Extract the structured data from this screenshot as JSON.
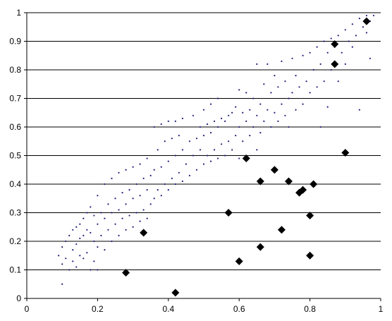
{
  "chart_data": {
    "type": "scatter",
    "title": "",
    "xlabel": "",
    "ylabel": "",
    "xlim": [
      0,
      1
    ],
    "ylim": [
      0,
      1
    ],
    "x_ticks": [
      "0",
      "0.2",
      "0.4",
      "0.6",
      "0.8",
      "1"
    ],
    "y_ticks": [
      "0",
      "0.1",
      "0.2",
      "0.3",
      "0.4",
      "0.5",
      "0.6",
      "0.7",
      "0.8",
      "0.9",
      "1"
    ],
    "horizontal_grid": true,
    "vertical_grid": false,
    "legend": "none",
    "series": [
      {
        "marker": "small-dot",
        "color": "#1f1f7a",
        "points": [
          [
            0.09,
            0.15
          ],
          [
            0.1,
            0.05
          ],
          [
            0.1,
            0.12
          ],
          [
            0.1,
            0.18
          ],
          [
            0.11,
            0.2
          ],
          [
            0.11,
            0.14
          ],
          [
            0.12,
            0.22
          ],
          [
            0.12,
            0.1
          ],
          [
            0.13,
            0.24
          ],
          [
            0.13,
            0.17
          ],
          [
            0.13,
            0.13
          ],
          [
            0.14,
            0.25
          ],
          [
            0.14,
            0.19
          ],
          [
            0.14,
            0.11
          ],
          [
            0.15,
            0.26
          ],
          [
            0.15,
            0.21
          ],
          [
            0.15,
            0.15
          ],
          [
            0.16,
            0.28
          ],
          [
            0.16,
            0.22
          ],
          [
            0.16,
            0.14
          ],
          [
            0.17,
            0.3
          ],
          [
            0.17,
            0.24
          ],
          [
            0.17,
            0.16
          ],
          [
            0.18,
            0.32
          ],
          [
            0.18,
            0.23
          ],
          [
            0.18,
            0.1
          ],
          [
            0.19,
            0.29
          ],
          [
            0.19,
            0.2
          ],
          [
            0.19,
            0.13
          ],
          [
            0.2,
            0.36
          ],
          [
            0.2,
            0.26
          ],
          [
            0.2,
            0.18
          ],
          [
            0.2,
            0.1
          ],
          [
            0.21,
            0.3
          ],
          [
            0.21,
            0.22
          ],
          [
            0.22,
            0.4
          ],
          [
            0.22,
            0.28
          ],
          [
            0.22,
            0.17
          ],
          [
            0.23,
            0.33
          ],
          [
            0.23,
            0.24
          ],
          [
            0.24,
            0.42
          ],
          [
            0.24,
            0.3
          ],
          [
            0.24,
            0.2
          ],
          [
            0.25,
            0.35
          ],
          [
            0.25,
            0.26
          ],
          [
            0.26,
            0.44
          ],
          [
            0.26,
            0.31
          ],
          [
            0.26,
            0.22
          ],
          [
            0.27,
            0.37
          ],
          [
            0.27,
            0.28
          ],
          [
            0.28,
            0.45
          ],
          [
            0.28,
            0.33
          ],
          [
            0.28,
            0.24
          ],
          [
            0.29,
            0.38
          ],
          [
            0.29,
            0.29
          ],
          [
            0.3,
            0.46
          ],
          [
            0.3,
            0.35
          ],
          [
            0.3,
            0.25
          ],
          [
            0.31,
            0.4
          ],
          [
            0.31,
            0.3
          ],
          [
            0.32,
            0.47
          ],
          [
            0.32,
            0.36
          ],
          [
            0.32,
            0.27
          ],
          [
            0.33,
            0.42
          ],
          [
            0.33,
            0.31
          ],
          [
            0.34,
            0.49
          ],
          [
            0.34,
            0.38
          ],
          [
            0.34,
            0.28
          ],
          [
            0.35,
            0.43
          ],
          [
            0.35,
            0.33
          ],
          [
            0.36,
            0.6
          ],
          [
            0.36,
            0.45
          ],
          [
            0.36,
            0.35
          ],
          [
            0.37,
            0.52
          ],
          [
            0.37,
            0.38
          ],
          [
            0.38,
            0.61
          ],
          [
            0.38,
            0.46
          ],
          [
            0.38,
            0.36
          ],
          [
            0.39,
            0.55
          ],
          [
            0.39,
            0.4
          ],
          [
            0.4,
            0.62
          ],
          [
            0.4,
            0.48
          ],
          [
            0.4,
            0.38
          ],
          [
            0.41,
            0.56
          ],
          [
            0.41,
            0.42
          ],
          [
            0.42,
            0.62
          ],
          [
            0.42,
            0.5
          ],
          [
            0.42,
            0.4
          ],
          [
            0.43,
            0.57
          ],
          [
            0.43,
            0.44
          ],
          [
            0.44,
            0.63
          ],
          [
            0.44,
            0.52
          ],
          [
            0.44,
            0.41
          ],
          [
            0.45,
            0.47
          ],
          [
            0.46,
            0.55
          ],
          [
            0.46,
            0.43
          ],
          [
            0.47,
            0.64
          ],
          [
            0.47,
            0.5
          ],
          [
            0.48,
            0.56
          ],
          [
            0.48,
            0.45
          ],
          [
            0.49,
            0.6
          ],
          [
            0.49,
            0.52
          ],
          [
            0.5,
            0.66
          ],
          [
            0.5,
            0.57
          ],
          [
            0.5,
            0.47
          ],
          [
            0.51,
            0.61
          ],
          [
            0.51,
            0.5
          ],
          [
            0.52,
            0.68
          ],
          [
            0.52,
            0.58
          ],
          [
            0.52,
            0.48
          ],
          [
            0.53,
            0.62
          ],
          [
            0.53,
            0.52
          ],
          [
            0.54,
            0.7
          ],
          [
            0.54,
            0.6
          ],
          [
            0.54,
            0.49
          ],
          [
            0.55,
            0.63
          ],
          [
            0.55,
            0.54
          ],
          [
            0.56,
            0.62
          ],
          [
            0.56,
            0.5
          ],
          [
            0.57,
            0.64
          ],
          [
            0.57,
            0.55
          ],
          [
            0.58,
            0.65
          ],
          [
            0.58,
            0.52
          ],
          [
            0.59,
            0.67
          ],
          [
            0.59,
            0.57
          ],
          [
            0.6,
            0.73
          ],
          [
            0.6,
            0.6
          ],
          [
            0.6,
            0.49
          ],
          [
            0.61,
            0.65
          ],
          [
            0.61,
            0.55
          ],
          [
            0.62,
            0.72
          ],
          [
            0.62,
            0.62
          ],
          [
            0.62,
            0.5
          ],
          [
            0.63,
            0.66
          ],
          [
            0.63,
            0.57
          ],
          [
            0.64,
            0.7
          ],
          [
            0.64,
            0.6
          ],
          [
            0.65,
            0.82
          ],
          [
            0.65,
            0.64
          ],
          [
            0.65,
            0.52
          ],
          [
            0.66,
            0.68
          ],
          [
            0.66,
            0.58
          ],
          [
            0.67,
            0.75
          ],
          [
            0.67,
            0.62
          ],
          [
            0.68,
            0.82
          ],
          [
            0.68,
            0.66
          ],
          [
            0.69,
            0.72
          ],
          [
            0.69,
            0.6
          ],
          [
            0.7,
            0.78
          ],
          [
            0.7,
            0.65
          ],
          [
            0.71,
            0.74
          ],
          [
            0.71,
            0.62
          ],
          [
            0.72,
            0.83
          ],
          [
            0.72,
            0.68
          ],
          [
            0.73,
            0.76
          ],
          [
            0.73,
            0.64
          ],
          [
            0.74,
            0.7
          ],
          [
            0.74,
            0.6
          ],
          [
            0.75,
            0.84
          ],
          [
            0.75,
            0.72
          ],
          [
            0.76,
            0.78
          ],
          [
            0.76,
            0.66
          ],
          [
            0.77,
            0.74
          ],
          [
            0.78,
            0.85
          ],
          [
            0.78,
            0.68
          ],
          [
            0.79,
            0.76
          ],
          [
            0.8,
            0.86
          ],
          [
            0.8,
            0.72
          ],
          [
            0.81,
            0.8
          ],
          [
            0.82,
            0.88
          ],
          [
            0.82,
            0.74
          ],
          [
            0.83,
            0.82
          ],
          [
            0.83,
            0.6
          ],
          [
            0.84,
            0.9
          ],
          [
            0.84,
            0.76
          ],
          [
            0.85,
            0.86
          ],
          [
            0.85,
            0.67
          ],
          [
            0.86,
            0.91
          ],
          [
            0.86,
            0.8
          ],
          [
            0.87,
            0.88
          ],
          [
            0.88,
            0.92
          ],
          [
            0.88,
            0.76
          ],
          [
            0.89,
            0.86
          ],
          [
            0.9,
            0.94
          ],
          [
            0.9,
            0.82
          ],
          [
            0.91,
            0.9
          ],
          [
            0.92,
            0.96
          ],
          [
            0.92,
            0.88
          ],
          [
            0.93,
            0.92
          ],
          [
            0.94,
            0.98
          ],
          [
            0.94,
            0.66
          ],
          [
            0.95,
            0.95
          ],
          [
            0.96,
            0.99
          ],
          [
            0.96,
            0.93
          ],
          [
            0.97,
            0.97
          ],
          [
            0.97,
            0.84
          ],
          [
            0.98,
            0.99
          ]
        ]
      },
      {
        "marker": "diamond",
        "color": "#000000",
        "points": [
          [
            0.28,
            0.09
          ],
          [
            0.33,
            0.23
          ],
          [
            0.42,
            0.02
          ],
          [
            0.57,
            0.3
          ],
          [
            0.6,
            0.13
          ],
          [
            0.62,
            0.49
          ],
          [
            0.66,
            0.41
          ],
          [
            0.66,
            0.18
          ],
          [
            0.7,
            0.45
          ],
          [
            0.72,
            0.24
          ],
          [
            0.74,
            0.41
          ],
          [
            0.77,
            0.37
          ],
          [
            0.78,
            0.38
          ],
          [
            0.8,
            0.29
          ],
          [
            0.8,
            0.15
          ],
          [
            0.81,
            0.4
          ],
          [
            0.87,
            0.89
          ],
          [
            0.87,
            0.82
          ],
          [
            0.9,
            0.51
          ],
          [
            0.96,
            0.97
          ]
        ]
      }
    ]
  }
}
